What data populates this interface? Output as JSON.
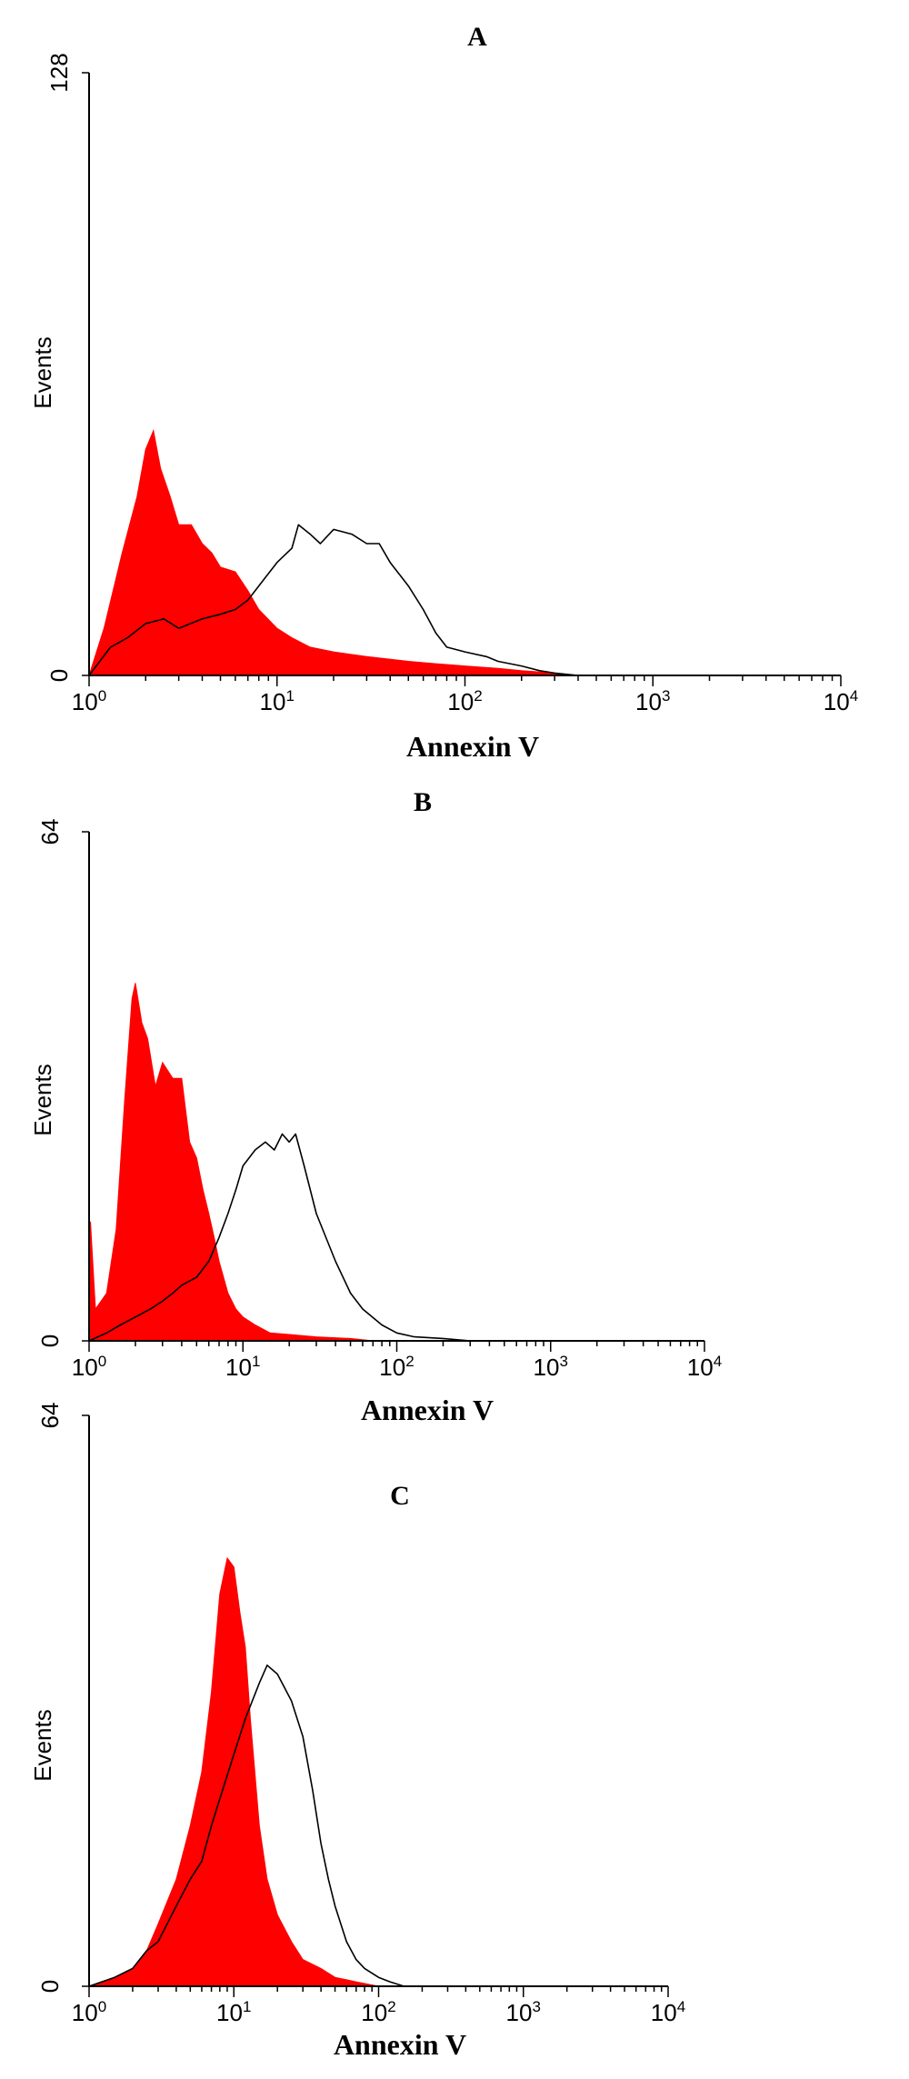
{
  "chart_data": [
    {
      "type": "area",
      "title": "A",
      "xlabel": "Annexin V",
      "ylabel": "Events",
      "xscale": "log",
      "xlim": [
        1,
        10000
      ],
      "ylim": [
        0,
        128
      ],
      "xticks": [
        {
          "base": "10",
          "exp": "0"
        },
        {
          "base": "10",
          "exp": "1"
        },
        {
          "base": "10",
          "exp": "2"
        },
        {
          "base": "10",
          "exp": "3"
        },
        {
          "base": "10",
          "exp": "4"
        }
      ],
      "yticks": [
        "0",
        "128"
      ],
      "grid": false,
      "series": [
        {
          "style": "filled",
          "color": "#ff0000",
          "x": [
            1.0,
            1.2,
            1.5,
            1.8,
            2.0,
            2.2,
            2.4,
            2.7,
            3.0,
            3.5,
            4.0,
            4.5,
            5.0,
            6.0,
            7.0,
            8.0,
            10,
            12,
            15,
            20,
            30,
            50,
            70,
            100,
            150,
            200,
            300,
            400
          ],
          "y": [
            0,
            10,
            26,
            38,
            48,
            52,
            44,
            38,
            32,
            32,
            28,
            26,
            23,
            22,
            18,
            14,
            10,
            8,
            6,
            5,
            4,
            3,
            2.5,
            2,
            1.5,
            1,
            0.5,
            0
          ]
        },
        {
          "style": "outline",
          "color": "#000000",
          "x": [
            1.0,
            1.3,
            1.6,
            2.0,
            2.5,
            3.0,
            4.0,
            5.0,
            6.0,
            7.0,
            8.0,
            10,
            12,
            13,
            15,
            17,
            20,
            25,
            30,
            35,
            40,
            50,
            60,
            70,
            80,
            100,
            130,
            150,
            200,
            250,
            300,
            400
          ],
          "y": [
            0,
            6,
            8,
            11,
            12,
            10,
            12,
            13,
            14,
            16,
            19,
            24,
            27,
            32,
            30,
            28,
            31,
            30,
            28,
            28,
            24,
            19,
            14,
            9,
            6,
            5,
            4,
            3,
            2,
            1,
            0.5,
            0
          ]
        }
      ]
    },
    {
      "type": "area",
      "title": "B",
      "xlabel": "Annexin V",
      "ylabel": "Events",
      "xscale": "log",
      "xlim": [
        1,
        10000
      ],
      "ylim": [
        0,
        64
      ],
      "xticks": [
        {
          "base": "10",
          "exp": "0"
        },
        {
          "base": "10",
          "exp": "1"
        },
        {
          "base": "10",
          "exp": "2"
        },
        {
          "base": "10",
          "exp": "3"
        },
        {
          "base": "10",
          "exp": "4"
        }
      ],
      "yticks": [
        "0",
        "64"
      ],
      "grid": false,
      "series": [
        {
          "style": "filled",
          "color": "#ff0000",
          "x": [
            1.0,
            1.02,
            1.1,
            1.3,
            1.5,
            1.7,
            1.9,
            2.0,
            2.2,
            2.4,
            2.7,
            3.0,
            3.5,
            4.0,
            4.5,
            5.0,
            5.5,
            6.0,
            6.5,
            7.0,
            8.0,
            9.0,
            10,
            12,
            15,
            20,
            30,
            50,
            70
          ],
          "y": [
            0,
            15,
            4,
            6,
            14,
            30,
            43,
            45,
            40,
            38,
            32,
            35,
            33,
            33,
            25,
            23,
            19,
            16,
            13,
            10,
            6,
            4,
            3,
            2,
            1,
            0.8,
            0.5,
            0.3,
            0
          ]
        },
        {
          "style": "outline",
          "color": "#000000",
          "x": [
            1.0,
            1.3,
            1.6,
            2.0,
            2.5,
            3.0,
            3.5,
            4.0,
            5.0,
            6.0,
            7.0,
            8.0,
            9.0,
            10,
            12,
            14,
            16,
            18,
            20,
            22,
            25,
            30,
            40,
            50,
            60,
            80,
            100,
            130,
            200,
            300
          ],
          "y": [
            0,
            1,
            2,
            3,
            4,
            5,
            6,
            7,
            8,
            10,
            13,
            16,
            19,
            22,
            24,
            25,
            24,
            26,
            25,
            26,
            22,
            16,
            10,
            6,
            4,
            2,
            1,
            0.5,
            0.3,
            0
          ]
        }
      ]
    },
    {
      "type": "area",
      "title": "C",
      "xlabel": "Annexin V",
      "ylabel": "Events",
      "xscale": "log",
      "xlim": [
        1,
        10000
      ],
      "ylim": [
        0,
        64
      ],
      "xticks": [
        {
          "base": "10",
          "exp": "0"
        },
        {
          "base": "10",
          "exp": "1"
        },
        {
          "base": "10",
          "exp": "2"
        },
        {
          "base": "10",
          "exp": "3"
        },
        {
          "base": "10",
          "exp": "4"
        }
      ],
      "yticks": [
        "0",
        "64"
      ],
      "grid": false,
      "series": [
        {
          "style": "filled",
          "color": "#ff0000",
          "x": [
            1.0,
            1.5,
            2.0,
            2.5,
            3.0,
            4.0,
            5.0,
            6.0,
            7.0,
            8.0,
            9.0,
            10,
            11,
            12,
            13,
            15,
            17,
            20,
            25,
            30,
            40,
            50,
            70,
            100
          ],
          "y": [
            0,
            1,
            2,
            4,
            7,
            12,
            18,
            24,
            33,
            44,
            48,
            47,
            42,
            38,
            30,
            18,
            12,
            8,
            5,
            3,
            2,
            1,
            0.5,
            0
          ]
        },
        {
          "style": "outline",
          "color": "#000000",
          "x": [
            1.0,
            1.5,
            2.0,
            2.5,
            3.0,
            4.0,
            5.0,
            6.0,
            7.0,
            8.0,
            10,
            12,
            15,
            17,
            20,
            25,
            30,
            35,
            40,
            45,
            50,
            60,
            70,
            80,
            100,
            120,
            150
          ],
          "y": [
            0,
            1,
            2,
            4,
            5,
            9,
            12,
            14,
            18,
            21,
            26,
            30,
            34,
            36,
            35,
            32,
            28,
            22,
            16,
            12,
            9,
            5,
            3,
            2,
            1,
            0.5,
            0
          ]
        }
      ]
    }
  ]
}
